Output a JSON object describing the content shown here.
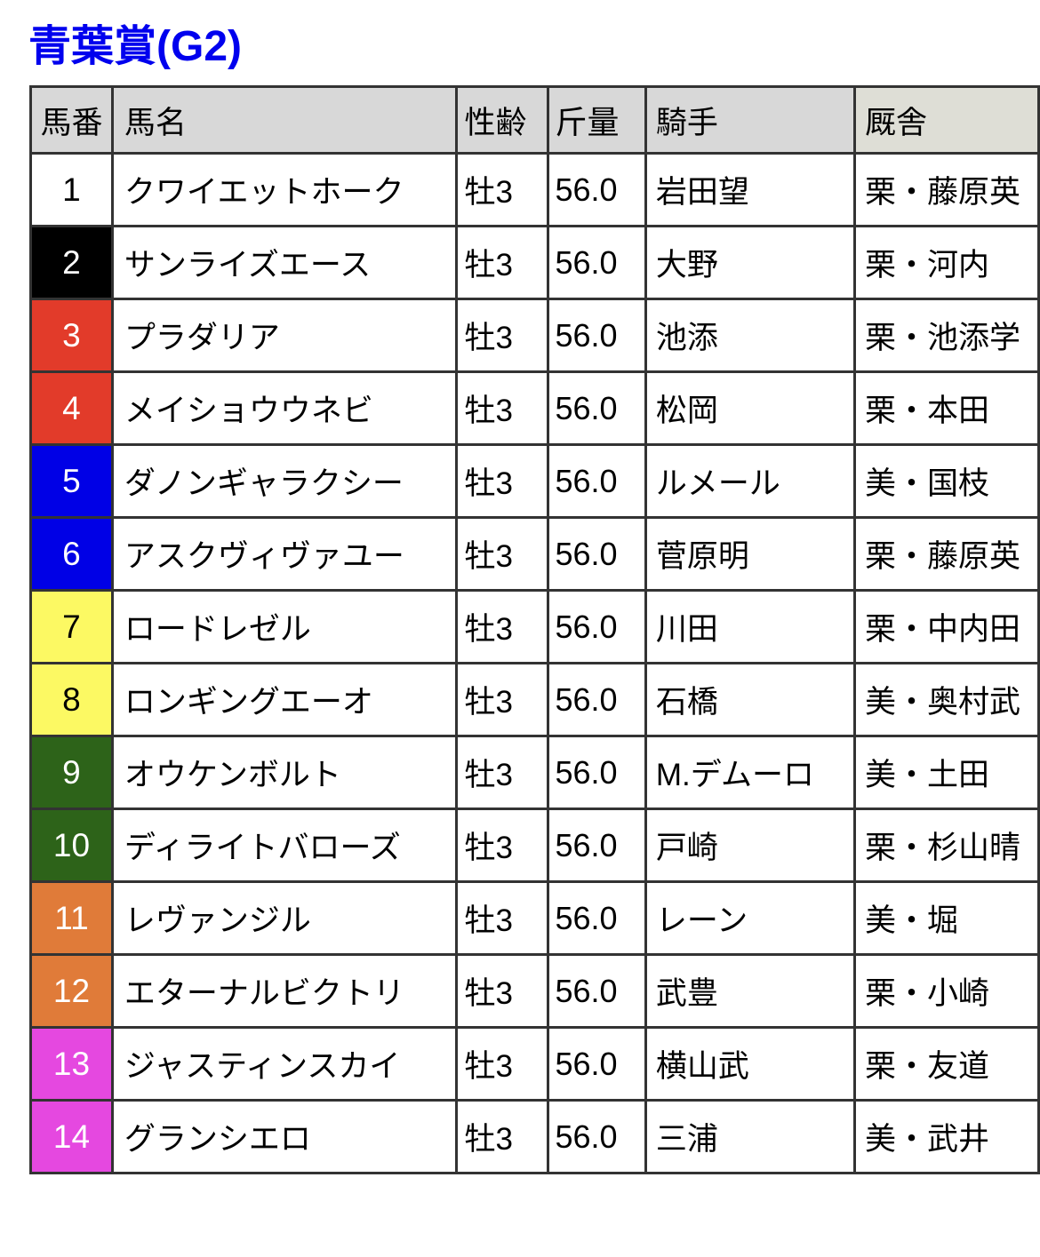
{
  "title": "青葉賞(G2)",
  "table": {
    "headers": [
      "馬番",
      "馬名",
      "性齢",
      "斤量",
      "騎手",
      "厩舎"
    ],
    "rows": [
      {
        "num": "1",
        "bracket": "white",
        "name": "クワイエットホーク",
        "sex_age": "牡3",
        "weight": "56.0",
        "jockey": "岩田望",
        "stable": "栗・藤原英"
      },
      {
        "num": "2",
        "bracket": "black",
        "name": "サンライズエース",
        "sex_age": "牡3",
        "weight": "56.0",
        "jockey": "大野",
        "stable": "栗・河内"
      },
      {
        "num": "3",
        "bracket": "red",
        "name": "プラダリア",
        "sex_age": "牡3",
        "weight": "56.0",
        "jockey": "池添",
        "stable": "栗・池添学"
      },
      {
        "num": "4",
        "bracket": "red",
        "name": "メイショウウネビ",
        "sex_age": "牡3",
        "weight": "56.0",
        "jockey": "松岡",
        "stable": "栗・本田"
      },
      {
        "num": "5",
        "bracket": "blue",
        "name": "ダノンギャラクシー",
        "sex_age": "牡3",
        "weight": "56.0",
        "jockey": "ルメール",
        "stable": "美・国枝"
      },
      {
        "num": "6",
        "bracket": "blue",
        "name": "アスクヴィヴァユー",
        "sex_age": "牡3",
        "weight": "56.0",
        "jockey": "菅原明",
        "stable": "栗・藤原英"
      },
      {
        "num": "7",
        "bracket": "yellow",
        "name": "ロードレゼル",
        "sex_age": "牡3",
        "weight": "56.0",
        "jockey": "川田",
        "stable": "栗・中内田"
      },
      {
        "num": "8",
        "bracket": "yellow",
        "name": "ロンギングエーオ",
        "sex_age": "牡3",
        "weight": "56.0",
        "jockey": "石橋",
        "stable": "美・奥村武"
      },
      {
        "num": "9",
        "bracket": "green",
        "name": "オウケンボルト",
        "sex_age": "牡3",
        "weight": "56.0",
        "jockey": "M.デムーロ",
        "stable": "美・土田"
      },
      {
        "num": "10",
        "bracket": "green",
        "name": "ディライトバローズ",
        "sex_age": "牡3",
        "weight": "56.0",
        "jockey": "戸崎",
        "stable": "栗・杉山晴"
      },
      {
        "num": "11",
        "bracket": "orange",
        "name": "レヴァンジル",
        "sex_age": "牡3",
        "weight": "56.0",
        "jockey": "レーン",
        "stable": "美・堀"
      },
      {
        "num": "12",
        "bracket": "orange",
        "name": "エターナルビクトリ",
        "sex_age": "牡3",
        "weight": "56.0",
        "jockey": "武豊",
        "stable": "栗・小崎"
      },
      {
        "num": "13",
        "bracket": "pink",
        "name": "ジャスティンスカイ",
        "sex_age": "牡3",
        "weight": "56.0",
        "jockey": "横山武",
        "stable": "栗・友道"
      },
      {
        "num": "14",
        "bracket": "pink",
        "name": "グランシエロ",
        "sex_age": "牡3",
        "weight": "56.0",
        "jockey": "三浦",
        "stable": "美・武井"
      }
    ]
  },
  "colors": {
    "title": "#0000ee",
    "header_bg": "#d8d8d8",
    "stable_header_bg": "#deded6",
    "border": "#333333",
    "brackets": {
      "white": {
        "bg": "#ffffff",
        "fg": "#000000"
      },
      "black": {
        "bg": "#000000",
        "fg": "#ffffff"
      },
      "red": {
        "bg": "#e23b2a",
        "fg": "#ffffff"
      },
      "blue": {
        "bg": "#0000e6",
        "fg": "#ffffff"
      },
      "yellow": {
        "bg": "#fcf963",
        "fg": "#000000"
      },
      "green": {
        "bg": "#2d6319",
        "fg": "#ffffff"
      },
      "orange": {
        "bg": "#e07b39",
        "fg": "#ffffff"
      },
      "pink": {
        "bg": "#e548e0",
        "fg": "#ffffff"
      }
    }
  }
}
